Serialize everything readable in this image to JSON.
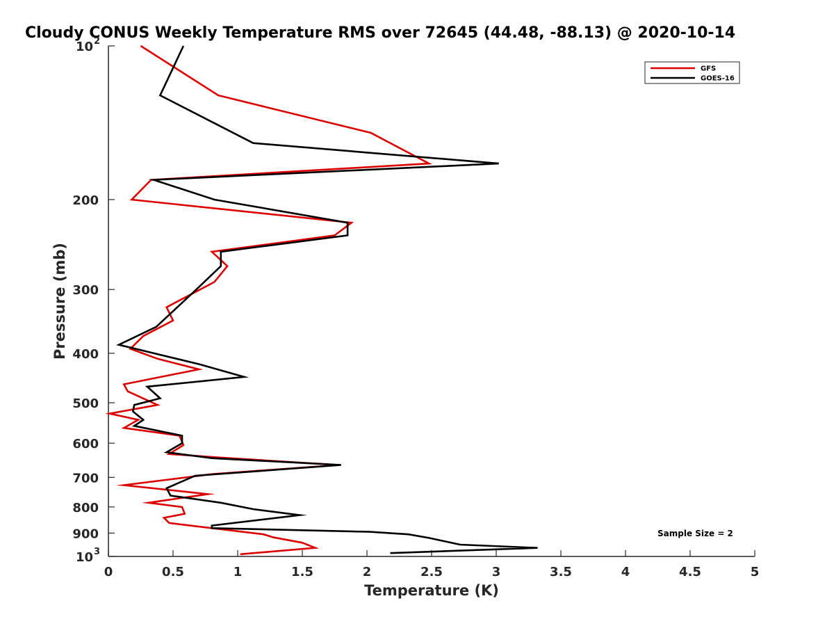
{
  "chart_data": {
    "type": "line",
    "title": "Cloudy CONUS Weekly Temperature RMS over 72645 (44.48, -88.13) @ 2020-10-14",
    "xlabel": "Temperature (K)",
    "ylabel": "Pressure (mb)",
    "xlim": [
      0,
      5
    ],
    "ylim": [
      100,
      1000
    ],
    "y_scale": "log",
    "y_reversed": true,
    "x_ticks": [
      0,
      0.5,
      1,
      1.5,
      2,
      2.5,
      3,
      3.5,
      4,
      4.5,
      5
    ],
    "x_tick_labels": [
      "0",
      "0.5",
      "1",
      "1.5",
      "2",
      "2.5",
      "3",
      "3.5",
      "4",
      "4.5",
      "5"
    ],
    "y_ticks": [
      100,
      200,
      300,
      400,
      500,
      600,
      700,
      800,
      900,
      1000
    ],
    "y_tick_labels": [
      {
        "base": "10",
        "exp": "2"
      },
      {
        "base": "200"
      },
      {
        "base": "300"
      },
      {
        "base": "400"
      },
      {
        "base": "500"
      },
      {
        "base": "600"
      },
      {
        "base": "700"
      },
      {
        "base": "800"
      },
      {
        "base": "900"
      },
      {
        "base": "10",
        "exp": "3"
      }
    ],
    "grid": false,
    "legend_position": "top-right",
    "annotation": "Sample Size = 2",
    "series": [
      {
        "name": "GFS",
        "color": "#dd0000",
        "points": [
          [
            0.25,
            100
          ],
          [
            0.85,
            125
          ],
          [
            2.03,
            148
          ],
          [
            2.48,
            170
          ],
          [
            0.33,
            183
          ],
          [
            0.18,
            200
          ],
          [
            1.88,
            222
          ],
          [
            1.75,
            235
          ],
          [
            0.8,
            253
          ],
          [
            0.92,
            270
          ],
          [
            0.82,
            290
          ],
          [
            0.45,
            325
          ],
          [
            0.5,
            345
          ],
          [
            0.27,
            370
          ],
          [
            0.17,
            392
          ],
          [
            0.38,
            410
          ],
          [
            0.7,
            430
          ],
          [
            0.12,
            460
          ],
          [
            0.15,
            475
          ],
          [
            0.38,
            505
          ],
          [
            0.01,
            525
          ],
          [
            0.23,
            540
          ],
          [
            0.12,
            560
          ],
          [
            0.55,
            580
          ],
          [
            0.58,
            605
          ],
          [
            0.47,
            630
          ],
          [
            0.85,
            640
          ],
          [
            1.78,
            662
          ],
          [
            0.8,
            690
          ],
          [
            0.12,
            725
          ],
          [
            0.77,
            755
          ],
          [
            0.31,
            785
          ],
          [
            0.57,
            800
          ],
          [
            0.59,
            825
          ],
          [
            0.43,
            840
          ],
          [
            0.47,
            860
          ],
          [
            0.8,
            880
          ],
          [
            1.2,
            905
          ],
          [
            1.28,
            918
          ],
          [
            1.5,
            940
          ],
          [
            1.6,
            962
          ],
          [
            1.02,
            990
          ]
        ]
      },
      {
        "name": "GOES-16",
        "color": "#000000",
        "points": [
          [
            0.58,
            100
          ],
          [
            0.4,
            125
          ],
          [
            1.12,
            155
          ],
          [
            3.02,
            170
          ],
          [
            0.35,
            183
          ],
          [
            0.82,
            200
          ],
          [
            1.85,
            222
          ],
          [
            1.85,
            235
          ],
          [
            0.87,
            253
          ],
          [
            0.87,
            270
          ],
          [
            0.68,
            300
          ],
          [
            0.37,
            355
          ],
          [
            0.08,
            385
          ],
          [
            0.7,
            420
          ],
          [
            1.05,
            445
          ],
          [
            0.3,
            465
          ],
          [
            0.4,
            490
          ],
          [
            0.2,
            505
          ],
          [
            0.19,
            520
          ],
          [
            0.27,
            540
          ],
          [
            0.2,
            555
          ],
          [
            0.57,
            580
          ],
          [
            0.57,
            600
          ],
          [
            0.45,
            625
          ],
          [
            0.8,
            642
          ],
          [
            1.8,
            662
          ],
          [
            0.67,
            695
          ],
          [
            0.45,
            735
          ],
          [
            0.48,
            760
          ],
          [
            0.87,
            785
          ],
          [
            1.12,
            808
          ],
          [
            1.48,
            830
          ],
          [
            0.8,
            870
          ],
          [
            0.8,
            880
          ],
          [
            2.02,
            895
          ],
          [
            2.32,
            905
          ],
          [
            2.48,
            920
          ],
          [
            2.72,
            948
          ],
          [
            3.32,
            962
          ],
          [
            2.18,
            985
          ]
        ]
      }
    ]
  }
}
